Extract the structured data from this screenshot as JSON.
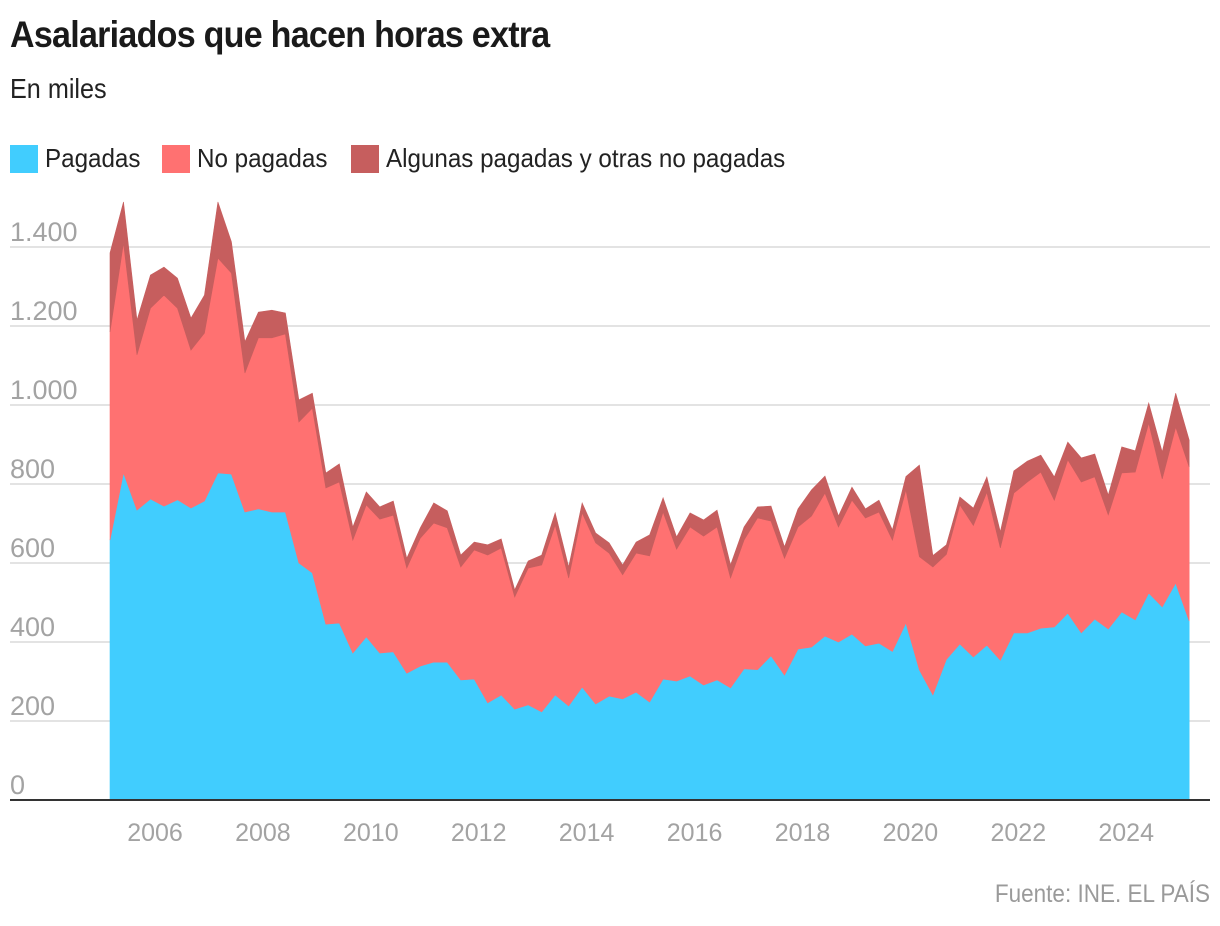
{
  "header": {
    "title": "Asalariados que hacen horas extra",
    "subtitle": "En miles"
  },
  "legend": [
    {
      "label": "Pagadas",
      "color": "#41CDFE"
    },
    {
      "label": "No pagadas",
      "color": "#FF7171"
    },
    {
      "label": "Algunas pagadas y otras no pagadas",
      "color": "#C65E5E"
    }
  ],
  "source": "Fuente: INE. EL PAÍS",
  "chart_data": {
    "type": "area",
    "stacked": true,
    "title": "Asalariados que hacen horas extra",
    "subtitle": "En miles",
    "xlabel": "",
    "ylabel": "",
    "ylim": [
      0,
      1500
    ],
    "grid": true,
    "legend_position": "top-left",
    "y_ticks": [
      0,
      200,
      400,
      600,
      800,
      1000,
      1200,
      1400
    ],
    "y_tick_labels": [
      "0",
      "200",
      "400",
      "600",
      "800",
      "1.000",
      "1.200",
      "1.400"
    ],
    "x_tick_labels": [
      "2006",
      "2008",
      "2010",
      "2012",
      "2014",
      "2016",
      "2018",
      "2020",
      "2022",
      "2024"
    ],
    "x_start": "2005T1",
    "frequency": "quarterly",
    "x": [
      "2005T1",
      "2005T2",
      "2005T3",
      "2005T4",
      "2006T1",
      "2006T2",
      "2006T3",
      "2006T4",
      "2007T1",
      "2007T2",
      "2007T3",
      "2007T4",
      "2008T1",
      "2008T2",
      "2008T3",
      "2008T4",
      "2009T1",
      "2009T2",
      "2009T3",
      "2009T4",
      "2010T1",
      "2010T2",
      "2010T3",
      "2010T4",
      "2011T1",
      "2011T2",
      "2011T3",
      "2011T4",
      "2012T1",
      "2012T2",
      "2012T3",
      "2012T4",
      "2013T1",
      "2013T2",
      "2013T3",
      "2013T4",
      "2014T1",
      "2014T2",
      "2014T3",
      "2014T4",
      "2015T1",
      "2015T2",
      "2015T3",
      "2015T4",
      "2016T1",
      "2016T2",
      "2016T3",
      "2016T4",
      "2017T1",
      "2017T2",
      "2017T3",
      "2017T4",
      "2018T1",
      "2018T2",
      "2018T3",
      "2018T4",
      "2019T1",
      "2019T2",
      "2019T3",
      "2019T4",
      "2020T1",
      "2020T2",
      "2020T3",
      "2020T4",
      "2021T1",
      "2021T2",
      "2021T3",
      "2021T4",
      "2022T1",
      "2022T2",
      "2022T3",
      "2022T4",
      "2023T1",
      "2023T2",
      "2023T3",
      "2023T4",
      "2024T1",
      "2024T2",
      "2024T3",
      "2024T4",
      "2025T1"
    ],
    "series": [
      {
        "name": "Pagadas",
        "color": "#41CDFE",
        "values": [
          658,
          828,
          734,
          762,
          744,
          760,
          739,
          757,
          828,
          825,
          729,
          737,
          729,
          729,
          600,
          575,
          445,
          448,
          372,
          413,
          372,
          375,
          321,
          339,
          349,
          349,
          304,
          306,
          246,
          266,
          230,
          241,
          223,
          266,
          238,
          286,
          243,
          263,
          256,
          273,
          248,
          306,
          301,
          314,
          291,
          304,
          284,
          332,
          330,
          365,
          316,
          382,
          387,
          415,
          400,
          420,
          390,
          397,
          376,
          448,
          329,
          266,
          356,
          395,
          362,
          392,
          354,
          423,
          423,
          435,
          438,
          473,
          423,
          458,
          433,
          476,
          456,
          524,
          489,
          549,
          453
        ]
      },
      {
        "name": "No pagadas",
        "color": "#FF7171",
        "values": [
          527,
          582,
          393,
          483,
          534,
          485,
          400,
          425,
          544,
          509,
          352,
          433,
          441,
          451,
          357,
          417,
          345,
          357,
          286,
          334,
          339,
          346,
          266,
          324,
          352,
          340,
          286,
          327,
          374,
          372,
          284,
          346,
          372,
          430,
          324,
          441,
          408,
          362,
          314,
          352,
          370,
          423,
          334,
          377,
          377,
          387,
          278,
          326,
          384,
          341,
          296,
          309,
          332,
          362,
          291,
          339,
          324,
          332,
          282,
          337,
          287,
          324,
          266,
          352,
          333,
          387,
          284,
          354,
          382,
          395,
          321,
          388,
          382,
          360,
          289,
          352,
          374,
          430,
          324,
          395,
          390
        ]
      },
      {
        "name": "Algunas pagadas y otras no pagadas",
        "color": "#C65E5E",
        "values": [
          200,
          104,
          88,
          84,
          71,
          76,
          81,
          96,
          142,
          79,
          79,
          65,
          70,
          53,
          56,
          38,
          38,
          46,
          33,
          33,
          31,
          36,
          25,
          26,
          51,
          43,
          30,
          20,
          26,
          23,
          18,
          18,
          25,
          31,
          28,
          25,
          25,
          26,
          25,
          28,
          53,
          36,
          31,
          36,
          41,
          43,
          33,
          33,
          28,
          38,
          29,
          46,
          66,
          43,
          28,
          33,
          23,
          30,
          26,
          34,
          232,
          29,
          24,
          20,
          44,
          39,
          41,
          56,
          53,
          43,
          59,
          45,
          61,
          58,
          50,
          66,
          54,
          51,
          68,
          86,
          68
        ]
      }
    ]
  }
}
